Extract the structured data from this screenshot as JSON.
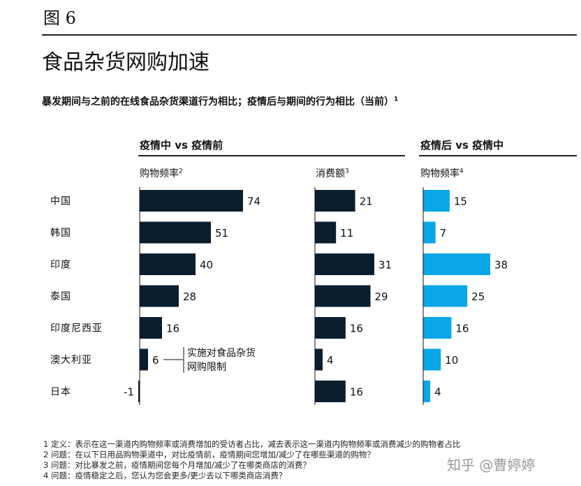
{
  "figure_label": "图 6",
  "title": "食品杂货网购加速",
  "subtitle": "暴发期间与之前的在线食品杂货渠道行为相比；疫情后与期间的行为相比（当前）",
  "subtitle_sup": "1",
  "group_left": "疫情中 vs 疫情前",
  "group_right": "疫情后 vs 疫情中",
  "annotation_line1": "实施对食品杂货",
  "annotation_line2": "网购限制",
  "notes": [
    "1 定义：表示在这一渠道内购物频率或消费增加的受访者占比，减去表示这一渠道内购物频率或消费减少的购物者占比",
    "2 问题：在以下日用品购物渠道中，对比疫情前，疫情期间您增加/减少了在哪些渠道的购物？",
    "3 问题：对比暴发之前，疫情期间您每个月增加/减少了在哪类商店的消费？",
    "4 问题：疫情稳定之后，您认为您会更多/更少去以下哪类商店消费？"
  ],
  "watermark": "知乎 @曹婷婷",
  "colors": {
    "dark_bar": "#0b1e2f",
    "light_bar": "#0aa6e8"
  },
  "chart_data": {
    "type": "bar",
    "orientation": "horizontal",
    "categories": [
      "中国",
      "韩国",
      "印度",
      "泰国",
      "印度尼西亚",
      "澳大利亚",
      "日本"
    ],
    "series": [
      {
        "name": "购物频率",
        "sup": "2",
        "group": "疫情中 vs 疫情前",
        "color": "#0b1e2f",
        "values": [
          74,
          51,
          40,
          28,
          16,
          6,
          -1
        ]
      },
      {
        "name": "消费额",
        "sup": "3",
        "group": "疫情中 vs 疫情前",
        "color": "#0b1e2f",
        "values": [
          21,
          11,
          31,
          29,
          16,
          4,
          16
        ]
      },
      {
        "name": "购物频率",
        "sup": "4",
        "group": "疫情后 vs 疫情中",
        "color": "#0aa6e8",
        "values": [
          15,
          7,
          38,
          25,
          16,
          10,
          4
        ]
      }
    ]
  }
}
